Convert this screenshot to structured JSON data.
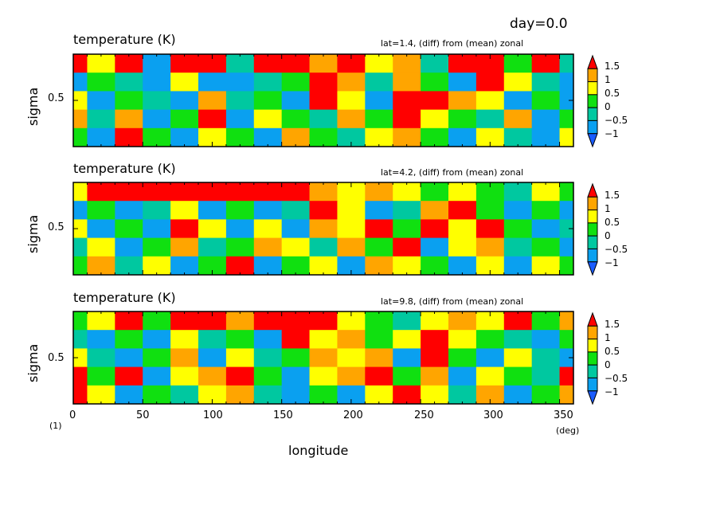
{
  "header": {
    "day_label": "day=0.0"
  },
  "units": {
    "x_unit": "(deg)",
    "y_unit": "(1)"
  },
  "x_axis": {
    "label": "longitude",
    "ticks": [
      "0",
      "50",
      "100",
      "150",
      "200",
      "250",
      "300",
      "350"
    ]
  },
  "y_axis": {
    "label": "sigma",
    "ticks": [
      "0.5"
    ]
  },
  "colorbar": {
    "labels": [
      "1.5",
      "1",
      "0.5",
      "0",
      "−0.5",
      "−1"
    ]
  },
  "colors": {
    "levels": [
      "#1a5cff",
      "#0aa0f0",
      "#00c8a0",
      "#10e010",
      "#ffff00",
      "#ffa500",
      "#ff0000"
    ],
    "frame": "#000000"
  },
  "chart_data": [
    {
      "type": "heatmap",
      "title": "temperature (K)",
      "annotation": "lat=1.4, (diff) from (mean) zonal",
      "xlabel": "",
      "ylabel": "sigma",
      "xlim": [
        0,
        360
      ],
      "ylim": [
        0,
        1
      ],
      "levels": [
        -1,
        -0.5,
        0,
        0.5,
        1,
        1.5
      ],
      "x": [
        0,
        20,
        40,
        60,
        80,
        100,
        120,
        140,
        160,
        180,
        200,
        220,
        240,
        260,
        280,
        300,
        320,
        340,
        360
      ],
      "y": [
        0.9,
        0.7,
        0.5,
        0.3,
        0.1
      ],
      "z": [
        [
          1.5,
          0.5,
          1.5,
          -1,
          1.5,
          1.5,
          -0.5,
          1.5,
          1.5,
          1,
          1.5,
          0.5,
          1,
          -0.5,
          1.5,
          1.5,
          0,
          1.5,
          -0.5
        ],
        [
          -1,
          0,
          -0.5,
          -1,
          0.5,
          -1,
          -1,
          -0.5,
          0,
          1.5,
          1,
          -0.5,
          1,
          0,
          -1,
          1.5,
          0.5,
          -0.5,
          -1
        ],
        [
          0.5,
          -1,
          0,
          -0.5,
          -1,
          1,
          -0.5,
          0,
          -1,
          1.5,
          0.5,
          -1,
          1.5,
          1.5,
          1,
          0.5,
          -1,
          0,
          -1
        ],
        [
          1,
          -0.5,
          1,
          -1,
          0,
          1.5,
          -1,
          0.5,
          0,
          -0.5,
          1,
          0,
          1.5,
          0.5,
          0,
          -0.5,
          1,
          -1,
          0
        ],
        [
          0,
          -1,
          1.5,
          0,
          -1,
          0.5,
          0,
          -1,
          1,
          0,
          -0.5,
          0.5,
          1,
          0,
          -1,
          0.5,
          -0.5,
          -1,
          0.5
        ]
      ]
    },
    {
      "type": "heatmap",
      "title": "temperature (K)",
      "annotation": "lat=4.2, (diff) from (mean) zonal",
      "xlabel": "",
      "ylabel": "sigma",
      "xlim": [
        0,
        360
      ],
      "ylim": [
        0,
        1
      ],
      "levels": [
        -1,
        -0.5,
        0,
        0.5,
        1,
        1.5
      ],
      "x": [
        0,
        20,
        40,
        60,
        80,
        100,
        120,
        140,
        160,
        180,
        200,
        220,
        240,
        260,
        280,
        300,
        320,
        340,
        360
      ],
      "y": [
        0.9,
        0.7,
        0.5,
        0.3,
        0.1
      ],
      "z": [
        [
          0.5,
          1.5,
          1.5,
          1.5,
          1.5,
          1.5,
          1.5,
          1.5,
          1.5,
          1,
          0.5,
          1,
          0.5,
          0,
          0.5,
          0,
          -0.5,
          0.5,
          0
        ],
        [
          -1,
          0,
          -1,
          -0.5,
          0.5,
          -1,
          0,
          -1,
          -0.5,
          1.5,
          0.5,
          -1,
          -0.5,
          1,
          1.5,
          0,
          -1,
          0,
          -1
        ],
        [
          0.5,
          -1,
          0,
          -1,
          1.5,
          0.5,
          -1,
          0.5,
          -1,
          1,
          0.5,
          1.5,
          0,
          1.5,
          0.5,
          1.5,
          0,
          -1,
          -0.5
        ],
        [
          -0.5,
          0.5,
          -1,
          0,
          1,
          -0.5,
          0,
          1,
          0.5,
          -0.5,
          1,
          0,
          1.5,
          -1,
          0.5,
          1,
          -0.5,
          0,
          -1
        ],
        [
          0,
          1,
          -0.5,
          0.5,
          -1,
          0,
          1.5,
          -1,
          0,
          0.5,
          -1,
          1,
          0.5,
          0,
          -1,
          0.5,
          -1,
          0.5,
          0
        ]
      ]
    },
    {
      "type": "heatmap",
      "title": "temperature (K)",
      "annotation": "lat=9.8, (diff) from (mean) zonal",
      "xlabel": "longitude",
      "ylabel": "sigma",
      "xlim": [
        0,
        360
      ],
      "ylim": [
        0,
        1
      ],
      "levels": [
        -1,
        -0.5,
        0,
        0.5,
        1,
        1.5
      ],
      "x": [
        0,
        20,
        40,
        60,
        80,
        100,
        120,
        140,
        160,
        180,
        200,
        220,
        240,
        260,
        280,
        300,
        320,
        340,
        360
      ],
      "y": [
        0.9,
        0.7,
        0.5,
        0.3,
        0.1
      ],
      "z": [
        [
          0,
          0.5,
          1.5,
          0,
          1.5,
          1.5,
          1,
          1.5,
          1.5,
          1.5,
          0.5,
          0,
          -0.5,
          0.5,
          1,
          0.5,
          1.5,
          0,
          1
        ],
        [
          -0.5,
          -1,
          0,
          -1,
          0.5,
          -0.5,
          0,
          -1,
          1.5,
          0.5,
          1,
          0,
          0.5,
          1.5,
          0.5,
          0,
          -0.5,
          -1,
          0
        ],
        [
          0.5,
          -0.5,
          -1,
          0,
          1,
          -1,
          0.5,
          -0.5,
          0,
          1,
          0.5,
          1,
          -1,
          1.5,
          0,
          -1,
          0.5,
          -0.5,
          -1
        ],
        [
          1.5,
          0,
          1.5,
          -1,
          0.5,
          1,
          1.5,
          0,
          -1,
          0.5,
          1,
          1.5,
          0,
          1,
          -1,
          0.5,
          0,
          -0.5,
          1.5
        ],
        [
          1.5,
          0.5,
          -1,
          0,
          -0.5,
          0.5,
          1,
          -0.5,
          -1,
          0,
          -1,
          0.5,
          1.5,
          0.5,
          -0.5,
          1,
          -1,
          0,
          1
        ]
      ]
    }
  ]
}
